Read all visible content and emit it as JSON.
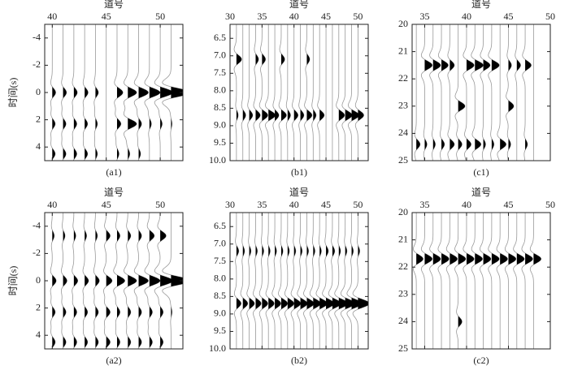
{
  "chart_data": [
    {
      "type": "wiggle",
      "xlabel": "道号",
      "ylabel": "时间(s)",
      "caption": "(a1)",
      "xlim": [
        39.3,
        52.1
      ],
      "xticks": [
        40,
        45,
        50
      ],
      "ylim": [
        -5,
        5
      ],
      "yticks": [
        -4,
        -2,
        0,
        2,
        4
      ],
      "y_inverted": true,
      "traces": [
        40,
        41,
        42,
        43,
        44,
        45,
        46,
        47,
        48,
        49,
        50,
        51
      ],
      "events": [
        {
          "t": 0,
          "amp": [
            0.35,
            0.35,
            0.35,
            0.35,
            0.3,
            0,
            0.6,
            0.9,
            1.0,
            1.1,
            1.3,
            2.0
          ]
        },
        {
          "t": 2.3,
          "amp": [
            0.3,
            0.3,
            0.3,
            0.3,
            0.2,
            0,
            0.4,
            0.9,
            0.3,
            0.2,
            0.2,
            0.1
          ]
        },
        {
          "t": 4.5,
          "amp": [
            0.3,
            0.3,
            0.3,
            0.3,
            0.2,
            0,
            0.2,
            0.2,
            0.2,
            0,
            0,
            0
          ]
        }
      ]
    },
    {
      "type": "wiggle",
      "xlabel": "道号",
      "caption": "(b1)",
      "xlim": [
        30,
        51.6
      ],
      "xticks": [
        30,
        35,
        40,
        45,
        50
      ],
      "ylim": [
        6.1,
        10
      ],
      "yticks": [
        6.5,
        {
          "value": 7,
          "label": "7.0"
        },
        7.5,
        {
          "value": 8,
          "label": "8.0"
        },
        8.5,
        {
          "value": 9,
          "label": "9.0"
        },
        9.5,
        {
          "value": 10,
          "label": "10.0"
        }
      ],
      "y_inverted": true,
      "traces": [
        31,
        32,
        33,
        34,
        35,
        36,
        37,
        38,
        39,
        40,
        41,
        42,
        43,
        44,
        45,
        46,
        47,
        48,
        49,
        50
      ],
      "events": [
        {
          "t": 7.1,
          "amp": [
            0.9,
            0,
            0,
            0.5,
            0.6,
            0,
            0,
            0.6,
            0,
            0,
            0,
            0.5,
            0,
            0,
            0,
            0,
            0,
            0,
            0,
            0
          ]
        },
        {
          "t": 8.7,
          "amp": [
            0.3,
            0.5,
            0.6,
            0.8,
            1.0,
            1.2,
            0.7,
            0.9,
            0.5,
            0.7,
            0.6,
            0.9,
            0.5,
            0.8,
            0,
            0,
            1.0,
            1.2,
            1.3,
            1.0
          ]
        }
      ]
    },
    {
      "type": "wiggle",
      "xlabel": "道号",
      "caption": "(c1)",
      "xlim": [
        33.5,
        50
      ],
      "xticks": [
        35,
        40,
        45,
        50
      ],
      "ylim": [
        20,
        25
      ],
      "yticks": [
        20,
        21,
        22,
        23,
        24,
        25
      ],
      "y_inverted": true,
      "traces": [
        34,
        35,
        36,
        37,
        38,
        39,
        40,
        41,
        42,
        43,
        44,
        45,
        46,
        47,
        48
      ],
      "events": [
        {
          "t": 21.5,
          "amp": [
            0,
            1.0,
            1.0,
            0.9,
            0.6,
            0,
            1.0,
            1.1,
            0.9,
            1.0,
            0,
            0.4,
            0.5,
            0.8,
            0
          ]
        },
        {
          "t": 23.0,
          "amp": [
            0,
            0,
            0,
            0,
            0,
            0.9,
            0,
            0,
            0,
            0,
            0,
            0.7,
            0,
            0,
            0
          ]
        },
        {
          "t": 24.4,
          "amp": [
            0.5,
            0.3,
            0.3,
            0.4,
            0.6,
            0.5,
            0.6,
            0.8,
            0.3,
            0.3,
            0.8,
            0.3,
            0,
            0.3,
            0
          ]
        }
      ]
    },
    {
      "type": "wiggle",
      "xlabel": "道号",
      "ylabel": "时间(s)",
      "caption": "(a2)",
      "xlim": [
        39.3,
        52.1
      ],
      "xticks": [
        40,
        45,
        50
      ],
      "ylim": [
        -5,
        5
      ],
      "yticks": [
        -4,
        -2,
        0,
        2,
        4
      ],
      "y_inverted": true,
      "traces": [
        40,
        41,
        42,
        43,
        44,
        45,
        46,
        47,
        48,
        49,
        50,
        51
      ],
      "events": [
        {
          "t": 0,
          "amp": [
            0.4,
            0.4,
            0.4,
            0.4,
            0.4,
            0.6,
            0.8,
            0.9,
            1.0,
            1.1,
            1.3,
            2.0
          ]
        },
        {
          "t": 2.3,
          "amp": [
            0.3,
            0.3,
            0.3,
            0.3,
            0.3,
            0.4,
            0.3,
            0.3,
            0.3,
            0.3,
            0.3,
            0.1
          ]
        },
        {
          "t": 4.5,
          "amp": [
            0.3,
            0.3,
            0.3,
            0.3,
            0.3,
            0.4,
            0.3,
            0.3,
            0.3,
            0.3,
            0.3,
            0
          ]
        },
        {
          "t": -3.3,
          "amp": [
            0.2,
            0.2,
            0.2,
            0.2,
            0.2,
            0.4,
            0.3,
            0.3,
            0.3,
            0.5,
            0.6,
            0
          ]
        }
      ]
    },
    {
      "type": "wiggle",
      "xlabel": "道号",
      "caption": "(b2)",
      "xlim": [
        30,
        51.6
      ],
      "xticks": [
        30,
        35,
        40,
        45,
        50
      ],
      "ylim": [
        6.1,
        10
      ],
      "yticks": [
        6.5,
        {
          "value": 7,
          "label": "7.0"
        },
        7.5,
        {
          "value": 8,
          "label": "8.0"
        },
        8.5,
        {
          "value": 9,
          "label": "9.0"
        },
        9.5,
        {
          "value": 10,
          "label": "10.0"
        }
      ],
      "y_inverted": true,
      "traces": [
        31,
        32,
        33,
        34,
        35,
        36,
        37,
        38,
        39,
        40,
        41,
        42,
        43,
        44,
        45,
        46,
        47,
        48,
        49,
        50
      ],
      "events": [
        {
          "t": 7.2,
          "amp": [
            0.4,
            0.3,
            0.3,
            0.3,
            0.3,
            0.3,
            0.3,
            0.3,
            0.3,
            0.3,
            0.3,
            0.3,
            0.3,
            0.3,
            0.4,
            0.4,
            0.3,
            0.3,
            0.3,
            0.3
          ]
        },
        {
          "t": 8.7,
          "amp": [
            0.8,
            0.85,
            0.9,
            0.95,
            1.0,
            1.0,
            1.05,
            1.1,
            1.1,
            1.15,
            1.2,
            1.25,
            1.3,
            1.35,
            1.4,
            1.5,
            1.6,
            1.7,
            1.8,
            2.0
          ]
        }
      ]
    },
    {
      "type": "wiggle",
      "xlabel": "道号",
      "caption": "(c2)",
      "xlim": [
        33.5,
        50
      ],
      "xticks": [
        35,
        40,
        45,
        50
      ],
      "ylim": [
        20,
        25
      ],
      "yticks": [
        20,
        21,
        22,
        23,
        24,
        25
      ],
      "y_inverted": true,
      "traces": [
        34,
        35,
        36,
        37,
        38,
        39,
        40,
        41,
        42,
        43,
        44,
        45,
        46,
        47,
        48
      ],
      "events": [
        {
          "t": 21.7,
          "amp": [
            0.9,
            1.0,
            1.0,
            1.0,
            1.0,
            1.0,
            1.0,
            1.0,
            1.0,
            1.0,
            1.0,
            1.0,
            1.0,
            1.0,
            1.0
          ]
        },
        {
          "t": 24.0,
          "amp": [
            0,
            0,
            0,
            0,
            0,
            0.5,
            0,
            0,
            0,
            0,
            0,
            0,
            0,
            0,
            0
          ]
        }
      ]
    }
  ]
}
